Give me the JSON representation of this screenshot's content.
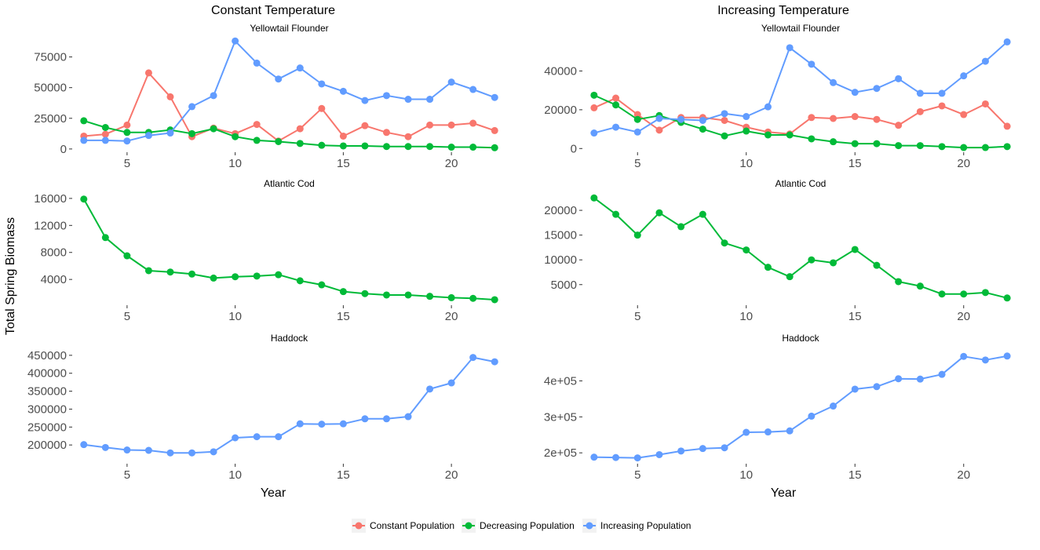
{
  "figure": {
    "ylabel": "Total Spring Biomass",
    "xlabel": "Year",
    "legend": {
      "position": "bottom",
      "entries": [
        {
          "name": "Constant Population",
          "color": "#F8766D"
        },
        {
          "name": "Decreasing Population",
          "color": "#00BA38"
        },
        {
          "name": "Increasing Population",
          "color": "#619CFF"
        }
      ]
    },
    "columns": [
      "Constant Temperature",
      "Increasing Temperature"
    ]
  },
  "chart_data": [
    {
      "type": "line",
      "title": "Yellowtail Flounder",
      "column": "Constant Temperature",
      "x": [
        3,
        4,
        5,
        6,
        7,
        8,
        9,
        10,
        11,
        12,
        13,
        14,
        15,
        16,
        17,
        18,
        19,
        20,
        21,
        22
      ],
      "xticks": [
        5,
        10,
        15,
        20
      ],
      "xlim": [
        2.5,
        22.5
      ],
      "ylim": [
        -2000,
        92000
      ],
      "yticks": [
        0,
        25000,
        50000,
        75000
      ],
      "yticklabels": [
        "0",
        "25000",
        "50000",
        "75000"
      ],
      "series": [
        {
          "name": "Constant Population",
          "values": [
            10500,
            12000,
            19500,
            62000,
            42500,
            10000,
            17000,
            12500,
            20000,
            6500,
            16500,
            33000,
            10500,
            19000,
            13500,
            10000,
            19500,
            19500,
            21000,
            15000
          ]
        },
        {
          "name": "Decreasing Population",
          "values": [
            23000,
            17500,
            13500,
            13500,
            15500,
            12500,
            16500,
            10000,
            7000,
            6000,
            4500,
            3000,
            2500,
            2500,
            2000,
            2000,
            2000,
            1500,
            1500,
            1000
          ]
        },
        {
          "name": "Increasing Population",
          "values": [
            7000,
            7000,
            6500,
            11000,
            13000,
            34500,
            43500,
            88000,
            70000,
            57000,
            66000,
            53000,
            47000,
            39500,
            43500,
            40500,
            40500,
            54500,
            48500,
            42000
          ]
        }
      ]
    },
    {
      "type": "line",
      "title": "Yellowtail Flounder",
      "column": "Increasing Temperature",
      "x": [
        3,
        4,
        5,
        6,
        7,
        8,
        9,
        10,
        11,
        12,
        13,
        14,
        15,
        16,
        17,
        18,
        19,
        20,
        21,
        22
      ],
      "xticks": [
        5,
        10,
        15,
        20
      ],
      "xlim": [
        2.5,
        22.5
      ],
      "ylim": [
        -1500,
        58000
      ],
      "yticks": [
        0,
        20000,
        40000
      ],
      "yticklabels": [
        "0",
        "20000",
        "40000"
      ],
      "series": [
        {
          "name": "Constant Population",
          "values": [
            21000,
            26000,
            17500,
            9500,
            16000,
            16000,
            14500,
            11000,
            8500,
            7500,
            16000,
            15500,
            16500,
            15000,
            12000,
            19000,
            22000,
            17500,
            23000,
            11500
          ]
        },
        {
          "name": "Decreasing Population",
          "values": [
            27500,
            22500,
            15000,
            17000,
            13500,
            10000,
            6500,
            9000,
            7000,
            7000,
            5000,
            3500,
            2500,
            2500,
            1500,
            1500,
            1000,
            500,
            500,
            1000
          ]
        },
        {
          "name": "Increasing Population",
          "values": [
            8000,
            11000,
            8500,
            15500,
            15000,
            14500,
            18000,
            16500,
            21500,
            52000,
            43500,
            34000,
            29000,
            31000,
            36000,
            28500,
            28500,
            37500,
            45000,
            55000
          ]
        }
      ]
    },
    {
      "type": "line",
      "title": "Atlantic Cod",
      "column": "Constant Temperature",
      "x": [
        3,
        4,
        5,
        6,
        7,
        8,
        9,
        10,
        11,
        12,
        13,
        14,
        15,
        16,
        17,
        18,
        19,
        20,
        21,
        22
      ],
      "xticks": [
        5,
        10,
        15,
        20
      ],
      "xlim": [
        2.5,
        22.5
      ],
      "ylim": [
        300,
        16800
      ],
      "yticks": [
        4000,
        8000,
        12000,
        16000
      ],
      "yticklabels": [
        "4000",
        "8000",
        "12000",
        "16000"
      ],
      "series": [
        {
          "name": "Decreasing Population",
          "values": [
            15900,
            10200,
            7500,
            5300,
            5100,
            4800,
            4200,
            4400,
            4500,
            4700,
            3800,
            3200,
            2200,
            1900,
            1700,
            1700,
            1500,
            1300,
            1200,
            1000
          ]
        }
      ]
    },
    {
      "type": "line",
      "title": "Atlantic Cod",
      "column": "Increasing Temperature",
      "x": [
        3,
        4,
        5,
        6,
        7,
        8,
        9,
        10,
        11,
        12,
        13,
        14,
        15,
        16,
        17,
        18,
        19,
        20,
        21,
        22
      ],
      "xticks": [
        5,
        10,
        15,
        20
      ],
      "xlim": [
        2.5,
        22.5
      ],
      "ylim": [
        1000,
        23500
      ],
      "yticks": [
        5000,
        10000,
        15000,
        20000
      ],
      "yticklabels": [
        "5000",
        "10000",
        "15000",
        "20000"
      ],
      "series": [
        {
          "name": "Decreasing Population",
          "values": [
            22500,
            19200,
            15000,
            19500,
            16700,
            19200,
            13400,
            12000,
            8500,
            6600,
            10000,
            9400,
            12100,
            8900,
            5600,
            4700,
            3100,
            3100,
            3400,
            2300
          ]
        }
      ]
    },
    {
      "type": "line",
      "title": "Haddock",
      "column": "Constant Temperature",
      "x": [
        3,
        4,
        5,
        6,
        7,
        8,
        9,
        10,
        11,
        12,
        13,
        14,
        15,
        16,
        17,
        18,
        19,
        20,
        21,
        22
      ],
      "xticks": [
        5,
        10,
        15,
        20
      ],
      "xlim": [
        2.5,
        22.5
      ],
      "ylim": [
        150000,
        465000
      ],
      "yticks": [
        200000,
        250000,
        300000,
        350000,
        400000,
        450000
      ],
      "yticklabels": [
        "200000",
        "250000",
        "300000",
        "350000",
        "400000",
        "450000"
      ],
      "series": [
        {
          "name": "Increasing Population",
          "values": [
            201000,
            193000,
            186000,
            185000,
            178000,
            178000,
            181000,
            220000,
            223000,
            223000,
            259000,
            258000,
            259000,
            273000,
            273000,
            279000,
            356000,
            373000,
            444000,
            432000
          ]
        }
      ]
    },
    {
      "type": "line",
      "title": "Haddock",
      "column": "Increasing Temperature",
      "x": [
        3,
        4,
        5,
        6,
        7,
        8,
        9,
        10,
        11,
        12,
        13,
        14,
        15,
        16,
        17,
        18,
        19,
        20,
        21,
        22
      ],
      "xticks": [
        5,
        10,
        15,
        20
      ],
      "xlim": [
        2.5,
        22.5
      ],
      "ylim": [
        172000,
        486000
      ],
      "yticks": [
        200000,
        300000,
        400000
      ],
      "yticklabels": [
        "2e+05",
        "3e+05",
        "4e+05"
      ],
      "series": [
        {
          "name": "Increasing Population",
          "values": [
            188000,
            187000,
            186000,
            195000,
            205000,
            212000,
            214000,
            257000,
            258000,
            261000,
            302000,
            330000,
            377000,
            384000,
            406000,
            405000,
            418000,
            468000,
            458000,
            469000
          ]
        }
      ]
    }
  ]
}
